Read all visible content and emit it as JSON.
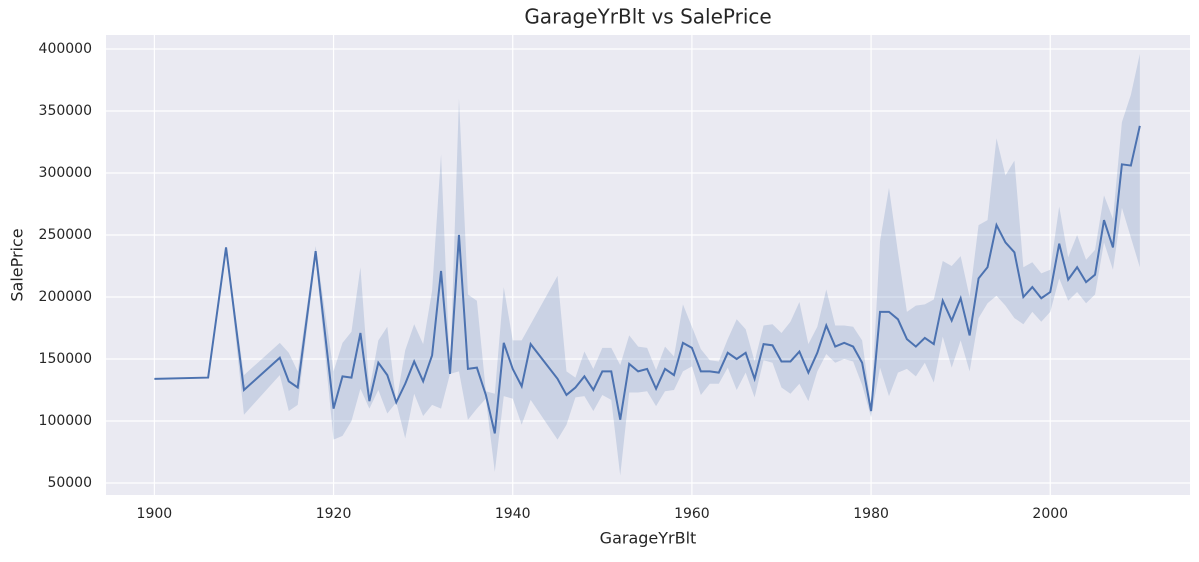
{
  "chart_data": {
    "type": "line",
    "title": "GarageYrBlt vs SalePrice",
    "x_label": "GarageYrBlt",
    "y_label": "SalePrice",
    "x": [
      1900,
      1906,
      1908,
      1910,
      1914,
      1915,
      1916,
      1918,
      1920,
      1921,
      1922,
      1923,
      1924,
      1925,
      1926,
      1927,
      1928,
      1929,
      1930,
      1931,
      1932,
      1933,
      1934,
      1935,
      1936,
      1937,
      1938,
      1939,
      1940,
      1941,
      1942,
      1945,
      1946,
      1947,
      1948,
      1949,
      1950,
      1951,
      1952,
      1953,
      1954,
      1955,
      1956,
      1957,
      1958,
      1959,
      1960,
      1961,
      1962,
      1963,
      1964,
      1965,
      1966,
      1967,
      1968,
      1969,
      1970,
      1971,
      1972,
      1973,
      1974,
      1975,
      1976,
      1977,
      1978,
      1979,
      1980,
      1981,
      1982,
      1983,
      1984,
      1985,
      1986,
      1987,
      1988,
      1989,
      1990,
      1991,
      1992,
      1993,
      1994,
      1995,
      1996,
      1997,
      1998,
      1999,
      2000,
      2001,
      2002,
      2003,
      2004,
      2005,
      2006,
      2007,
      2008,
      2009,
      2010
    ],
    "values": [
      134000,
      135000,
      240000,
      125000,
      151000,
      132000,
      127000,
      237000,
      110000,
      136000,
      135000,
      171000,
      116000,
      147000,
      137000,
      115000,
      130000,
      148000,
      132000,
      153000,
      221000,
      138000,
      250000,
      142000,
      143000,
      121000,
      90000,
      163000,
      142000,
      128000,
      162000,
      134000,
      121000,
      127000,
      136000,
      125000,
      140000,
      140000,
      101000,
      146000,
      140000,
      142000,
      126000,
      142000,
      137000,
      163000,
      159000,
      140000,
      140000,
      139000,
      155000,
      150000,
      155000,
      134000,
      162000,
      161000,
      148000,
      148000,
      156000,
      139000,
      155000,
      177000,
      160000,
      163000,
      160000,
      147000,
      108000,
      188000,
      188000,
      182000,
      166000,
      160000,
      167000,
      162000,
      197000,
      181000,
      199000,
      169000,
      215000,
      224000,
      258000,
      244000,
      236000,
      200000,
      208000,
      199000,
      204000,
      243000,
      214000,
      224000,
      212000,
      218000,
      262000,
      240000,
      307000,
      306000,
      338000
    ],
    "ci_lower": [
      134000,
      135000,
      240000,
      105000,
      137000,
      108000,
      113000,
      231000,
      85000,
      88000,
      100000,
      126000,
      110000,
      125000,
      106000,
      115000,
      86000,
      122000,
      104000,
      113000,
      110000,
      138000,
      140000,
      101000,
      110000,
      118000,
      59000,
      120000,
      118000,
      97000,
      117000,
      85000,
      97000,
      119000,
      120000,
      108000,
      121000,
      117000,
      56000,
      123000,
      123000,
      124000,
      112000,
      124000,
      125000,
      140000,
      144000,
      121000,
      130000,
      130000,
      143000,
      125000,
      139000,
      119000,
      149000,
      147000,
      127000,
      122000,
      130000,
      116000,
      140000,
      154000,
      147000,
      150000,
      148000,
      129000,
      103000,
      143000,
      120000,
      139000,
      142000,
      136000,
      147000,
      131000,
      168000,
      143000,
      165000,
      140000,
      183000,
      195000,
      201000,
      193000,
      183000,
      178000,
      188000,
      180000,
      188000,
      215000,
      197000,
      204000,
      195000,
      202000,
      244000,
      222000,
      272000,
      248000,
      224000
    ],
    "ci_upper": [
      134000,
      135000,
      240000,
      137000,
      163000,
      155000,
      140000,
      241000,
      140000,
      163000,
      172000,
      224000,
      125000,
      165000,
      176000,
      115000,
      157000,
      178000,
      162000,
      205000,
      315000,
      138000,
      360000,
      202000,
      197000,
      124000,
      122000,
      208000,
      165000,
      165000,
      178000,
      217000,
      140000,
      135000,
      156000,
      142000,
      159000,
      159000,
      145000,
      169000,
      160000,
      159000,
      141000,
      160000,
      152000,
      194000,
      176000,
      158000,
      149000,
      148000,
      166000,
      182000,
      174000,
      148000,
      177000,
      178000,
      171000,
      180000,
      196000,
      162000,
      176000,
      206000,
      177000,
      177000,
      176000,
      165000,
      112000,
      245000,
      288000,
      236000,
      188000,
      193000,
      194000,
      198000,
      229000,
      225000,
      233000,
      200000,
      258000,
      262000,
      328000,
      298000,
      310000,
      224000,
      228000,
      219000,
      222000,
      273000,
      232000,
      250000,
      230000,
      238000,
      282000,
      263000,
      341000,
      363000,
      396000
    ],
    "color": "#4c72b0",
    "xlim": [
      1894.6,
      2015.6
    ],
    "ylim": [
      40300,
      411300
    ],
    "xticks": [
      1900,
      1920,
      1940,
      1960,
      1980,
      2000
    ],
    "yticks": [
      50000,
      100000,
      150000,
      200000,
      250000,
      300000,
      350000,
      400000
    ],
    "grid": true
  }
}
